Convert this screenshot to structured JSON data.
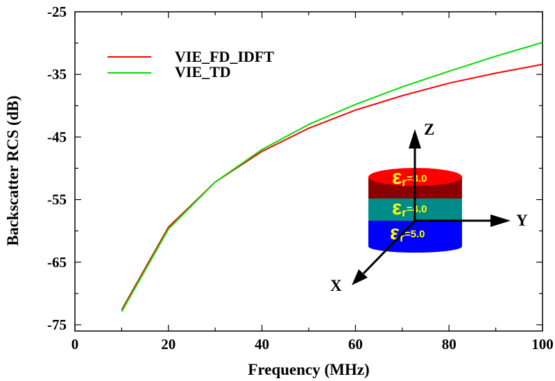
{
  "chart_data": {
    "type": "line",
    "title": "",
    "xlabel": "Frequency (MHz)",
    "ylabel": "Backscatter RCS (dB)",
    "xlim": [
      0,
      100
    ],
    "ylim": [
      -76,
      -25
    ],
    "xticks": [
      0,
      20,
      40,
      60,
      80,
      100
    ],
    "xtick_labels": [
      "0",
      "20",
      "40",
      "60",
      "80",
      "100"
    ],
    "yticks": [
      -25,
      -35,
      -45,
      -55,
      -65,
      -75
    ],
    "ytick_labels": [
      "-25",
      "-35",
      "-45",
      "-55",
      "-65",
      "-75"
    ],
    "grid": false,
    "legend_position": "top-left",
    "x": [
      10,
      20,
      30,
      40,
      50,
      60,
      70,
      80,
      90,
      100
    ],
    "series": [
      {
        "name": "VIE_FD_IDFT",
        "color": "#ff0000",
        "values": [
          -72.6,
          -59.4,
          -52.2,
          -47.3,
          -43.6,
          -40.7,
          -38.4,
          -36.4,
          -34.8,
          -33.4
        ]
      },
      {
        "name": "VIE_TD",
        "color": "#00dd00",
        "values": [
          -72.9,
          -59.7,
          -52.2,
          -47.0,
          -43.0,
          -39.8,
          -37.0,
          -34.5,
          -32.1,
          -29.9
        ]
      }
    ]
  },
  "inset": {
    "axes": {
      "z": "Z",
      "y": "Y",
      "x": "X"
    },
    "layers": [
      {
        "symbol": "ε",
        "subscript": "r",
        "value": "=3.0",
        "color": "#ff0000",
        "side_color": "#8b0000"
      },
      {
        "symbol": "ε",
        "subscript": "r",
        "value": "=4.0",
        "color": "#008b8b",
        "side_color": "#008b8b"
      },
      {
        "symbol": "ε",
        "subscript": "r",
        "value": "=5.0",
        "color": "#0000ff",
        "side_color": "#0000ff"
      }
    ]
  }
}
